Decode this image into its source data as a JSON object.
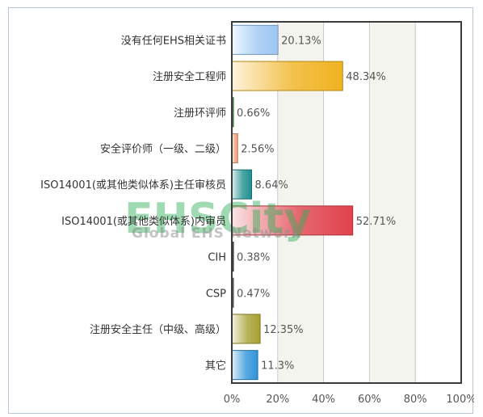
{
  "chart_data": {
    "type": "bar",
    "orientation": "horizontal",
    "categories": [
      "没有任何EHS相关证书",
      "注册安全工程师",
      "注册环评师",
      "安全评价师（一级、二级）",
      "ISO14001(或其他类似体系)主任审核员",
      "ISO14001(或其他类似体系)内审员",
      "CIH",
      "CSP",
      "注册安全主任（中级、高级）",
      "其它"
    ],
    "values": [
      20.13,
      48.34,
      0.66,
      2.56,
      8.64,
      52.71,
      0.38,
      0.47,
      12.35,
      11.3
    ],
    "value_labels": [
      "20.13%",
      "48.34%",
      "0.66%",
      "2.56%",
      "8.64%",
      "52.71%",
      "0.38%",
      "0.47%",
      "12.35%",
      "11.3%"
    ],
    "bar_colors": [
      "#9cc7f2",
      "#f0b21f",
      "#3a7d3a",
      "#f2a07a",
      "#1f8f8f",
      "#e0424c",
      "#333333",
      "#555555",
      "#a8a030",
      "#2f93d8"
    ],
    "xlim": [
      0,
      100
    ],
    "xticks": [
      0,
      20,
      40,
      60,
      80,
      100
    ],
    "xtick_labels": [
      "0%",
      "20%",
      "40%",
      "60%",
      "80%",
      "100%"
    ],
    "grid": true,
    "title": "",
    "xlabel": "",
    "ylabel": ""
  },
  "watermark": {
    "logo": "EHSCity",
    "tagline": "Global EHS Network"
  }
}
